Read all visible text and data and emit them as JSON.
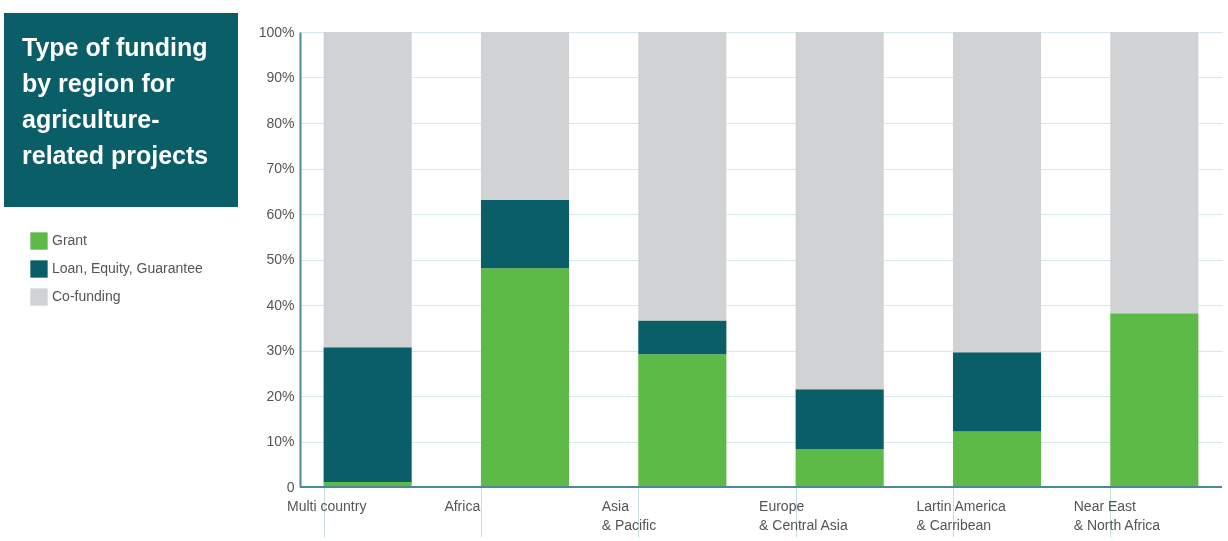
{
  "chart_data": {
    "type": "bar",
    "title": "Type of funding by region for agriculture-related projects",
    "categories": [
      "Multi country",
      "Africa",
      "Asia & Pacific",
      "Europe & Central Asia",
      "Lartin America & Carribean",
      "Near East & North Africa"
    ],
    "series": [
      {
        "name": "Grant",
        "color": "#5dba47",
        "values": [
          1.1,
          48.1,
          29.2,
          8.3,
          12.2,
          38.2
        ]
      },
      {
        "name": "Loan, Equity, Guarantee",
        "color": "#0a5e68",
        "values": [
          29.6,
          15.0,
          7.4,
          13.2,
          17.4,
          0
        ]
      },
      {
        "name": "Co-funding",
        "color": "#d1d2d4",
        "values": [
          69.3,
          36.9,
          63.4,
          78.5,
          70.4,
          61.8
        ]
      }
    ],
    "stacked": true,
    "ylim": [
      0,
      100
    ],
    "yticks": [
      {
        "value": 0,
        "label": "0"
      },
      {
        "value": 10,
        "label": "10%"
      },
      {
        "value": 20,
        "label": "20%"
      },
      {
        "value": 30,
        "label": "30%"
      },
      {
        "value": 40,
        "label": "40%"
      },
      {
        "value": 50,
        "label": "50%"
      },
      {
        "value": 60,
        "label": "60%"
      },
      {
        "value": 70,
        "label": "70%"
      },
      {
        "value": 80,
        "label": "80%"
      },
      {
        "value": 90,
        "label": "90%"
      },
      {
        "value": 100,
        "label": "100%"
      }
    ],
    "grid": "y",
    "legend": "left"
  }
}
